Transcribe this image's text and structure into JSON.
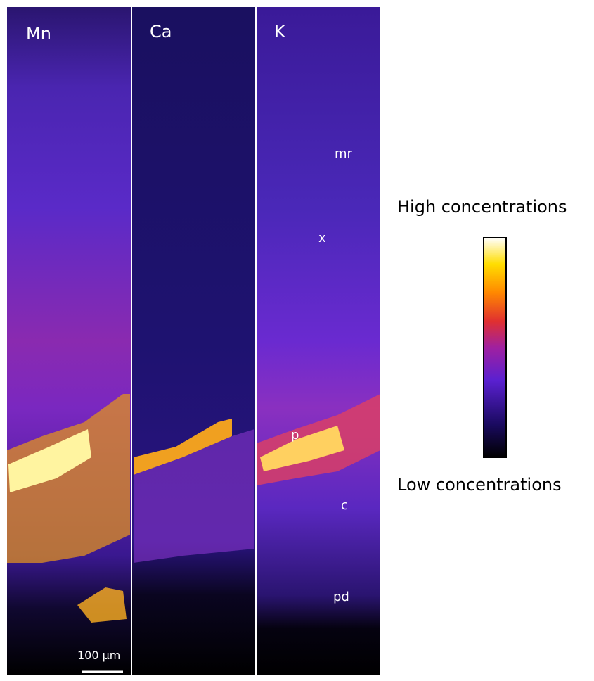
{
  "panels": [
    {
      "label": "Mn"
    },
    {
      "label": "Ca"
    },
    {
      "label": "K"
    }
  ],
  "annotations": [
    "mr",
    "x",
    "p",
    "c",
    "pd"
  ],
  "scale_bar": "100 µm",
  "colorbar": {
    "high": "High concentrations",
    "low": "Low concentrations"
  }
}
